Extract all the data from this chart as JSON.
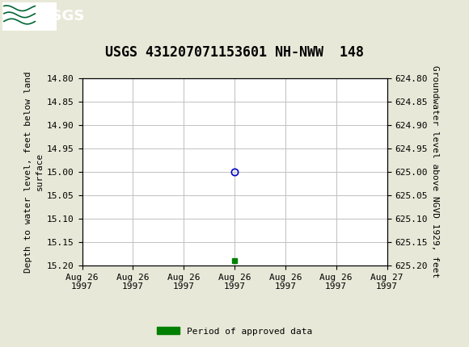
{
  "title": "USGS 431207071153601 NH-NWW  148",
  "header_bg_color": "#006633",
  "header_text_color": "#ffffff",
  "bg_color": "#e8e8d8",
  "plot_bg_color": "#ffffff",
  "grid_color": "#c0c0c0",
  "left_ylabel": "Depth to water level, feet below land\nsurface",
  "right_ylabel": "Groundwater level above NGVD 1929, feet",
  "ylim_left": [
    14.8,
    15.2
  ],
  "ylim_right": [
    624.8,
    625.2
  ],
  "yticks_left": [
    14.8,
    14.85,
    14.9,
    14.95,
    15.0,
    15.05,
    15.1,
    15.15,
    15.2
  ],
  "yticks_right": [
    625.2,
    625.15,
    625.1,
    625.05,
    625.0,
    624.95,
    624.9,
    624.85,
    624.8
  ],
  "data_point_y": 15.0,
  "data_point_color": "#0000cc",
  "approved_y": 15.19,
  "approved_color": "#008000",
  "font_family": "monospace",
  "title_fontsize": 12,
  "axis_fontsize": 8,
  "tick_fontsize": 8,
  "legend_label": "Period of approved data",
  "x_min": 0,
  "x_max": 24,
  "data_x": 12.0,
  "approved_x": 12.0,
  "tick_positions": [
    0,
    4,
    8,
    12,
    16,
    20,
    24
  ],
  "tick_labels_line1": [
    "Aug 26",
    "Aug 26",
    "Aug 26",
    "Aug 26",
    "Aug 26",
    "Aug 26",
    "Aug 27"
  ],
  "tick_labels_line2": [
    "1997",
    "1997",
    "1997",
    "1997",
    "1997",
    "1997",
    "1997"
  ]
}
